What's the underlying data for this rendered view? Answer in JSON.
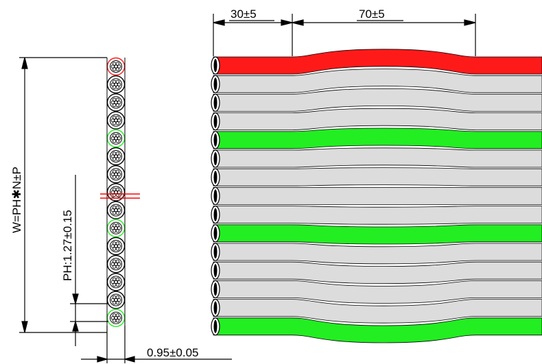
{
  "dimensions": {
    "top_short_split": "30±5",
    "top_long_split": "70±5",
    "total_width": "W=PH✱N±P",
    "pitch": "PH:1.27±0.15",
    "conductor_diameter": "0.95±0.05"
  },
  "cable": {
    "conductor_count": 15,
    "wire_colors": [
      "red",
      "gray",
      "gray",
      "gray",
      "green",
      "gray",
      "gray",
      "gray",
      "gray",
      "green",
      "gray",
      "gray",
      "gray",
      "gray",
      "green"
    ]
  },
  "colors": {
    "red": "#ff1a1a",
    "green": "#22ee22",
    "gray": "#dcdcdc",
    "line": "#000000",
    "center_mark": "#ff0000"
  }
}
